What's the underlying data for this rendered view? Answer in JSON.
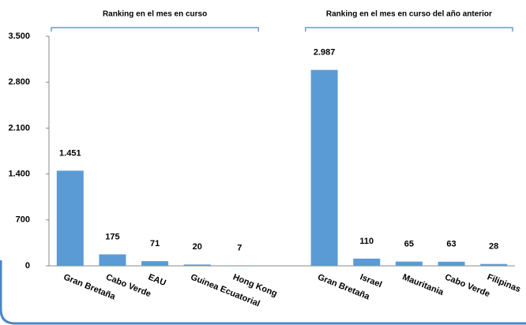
{
  "chart_data": {
    "type": "bar",
    "annotations": [
      "Ranking en el mes en curso",
      "Ranking en el mes en curso del año anterior"
    ],
    "categories": [
      "Gran Bretaña",
      "Cabo Verde",
      "EAU",
      "Guinea Ecuatorial",
      "Hong Kong",
      null,
      "Gran Bretaña",
      "Israel",
      "Mauritania",
      "Cabo Verde",
      "Filipinas"
    ],
    "values": [
      1451,
      175,
      71,
      20,
      7,
      null,
      2987,
      110,
      65,
      63,
      28
    ],
    "value_labels": [
      "1.451",
      "175",
      "71",
      "20",
      "7",
      null,
      "2.987",
      "110",
      "65",
      "63",
      "28"
    ],
    "color": "#5b9bd5",
    "ylim": [
      0,
      3500
    ],
    "yticks": [
      0,
      700,
      {
        "value": 1400,
        "label": "1.400"
      },
      {
        "value": 2100,
        "label": "2.100"
      },
      {
        "value": 2800,
        "label": "2.800"
      },
      {
        "value": 3500,
        "label": "3.500"
      }
    ],
    "grid": false
  }
}
